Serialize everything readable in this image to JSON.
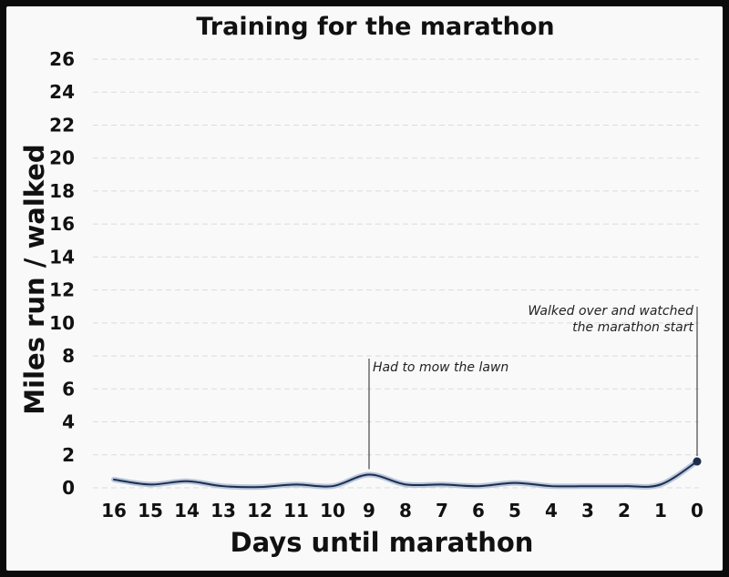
{
  "chart_data": {
    "type": "line",
    "title": "Training for the marathon",
    "xlabel": "Days until marathon",
    "ylabel": "Miles run / walked",
    "x": [
      16,
      15,
      14,
      13,
      12,
      11,
      10,
      9,
      8,
      7,
      6,
      5,
      4,
      3,
      2,
      1,
      0
    ],
    "x_tick_labels": [
      "16",
      "15",
      "14",
      "13",
      "12",
      "11",
      "10",
      "9",
      "8",
      "7",
      "6",
      "5",
      "4",
      "3",
      "2",
      "1",
      "0"
    ],
    "y_tick_labels": [
      "0",
      "2",
      "4",
      "6",
      "8",
      "10",
      "12",
      "14",
      "16",
      "18",
      "20",
      "22",
      "24",
      "26"
    ],
    "xlim": [
      16,
      0
    ],
    "ylim": [
      0,
      26
    ],
    "grid": true,
    "series": [
      {
        "values": [
          0.5,
          0.2,
          0.4,
          0.1,
          0.05,
          0.2,
          0.1,
          0.8,
          0.2,
          0.2,
          0.1,
          0.3,
          0.1,
          0.1,
          0.1,
          0.2,
          1.6
        ]
      }
    ],
    "line_color": "#1c2e4a",
    "annotations": [
      {
        "x": 9,
        "y": 0.8,
        "lines": [
          "Had to mow the lawn"
        ],
        "align": "left"
      },
      {
        "x": 0,
        "y": 1.6,
        "lines": [
          "Walked over and watched",
          "the marathon start"
        ],
        "align": "right"
      }
    ]
  }
}
